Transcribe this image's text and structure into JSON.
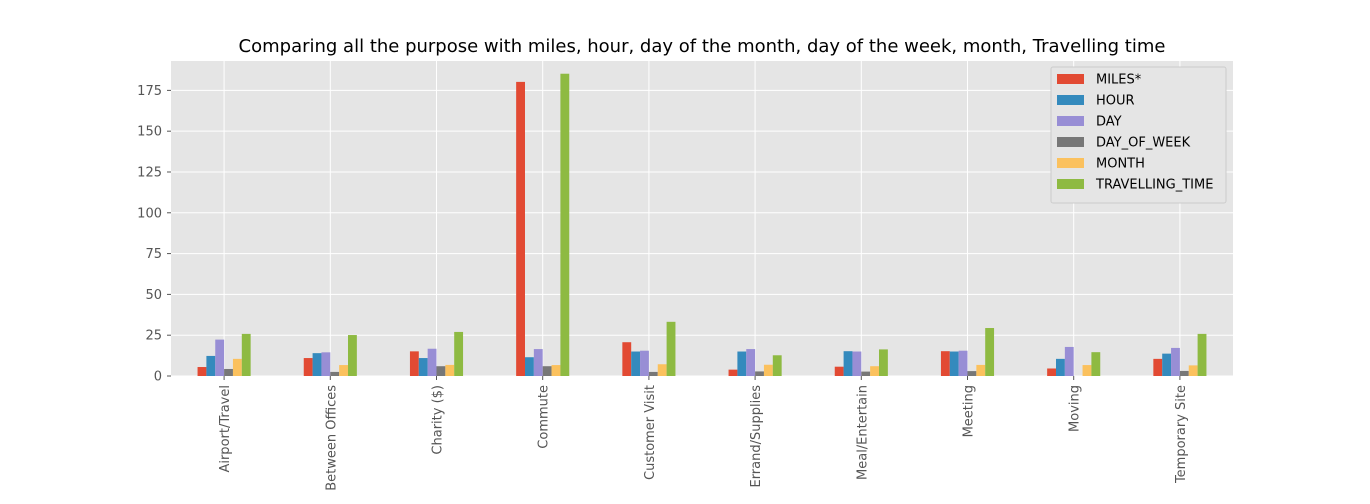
{
  "chart_data": {
    "type": "bar",
    "title": "Comparing all the purpose with miles, hour, day of the month, day of the week, month, Travelling time",
    "xlabel": "",
    "ylabel": "",
    "ylim": [
      0,
      193
    ],
    "yticks": [
      0,
      25,
      50,
      75,
      100,
      125,
      150,
      175
    ],
    "grid": true,
    "legend_position": "top-right",
    "categories": [
      "Airport/Travel",
      "Between Offices",
      "Charity ($)",
      "Commute",
      "Customer Visit",
      "Errand/Supplies",
      "Meal/Entertain",
      "Meeting",
      "Moving",
      "Temporary Site"
    ],
    "series": [
      {
        "name": "MILES*",
        "color": "#E24A33",
        "values": [
          5.5,
          11.0,
          15.1,
          180.2,
          20.7,
          3.9,
          5.7,
          15.2,
          4.6,
          10.5
        ]
      },
      {
        "name": "HOUR",
        "color": "#348ABD",
        "values": [
          12.3,
          14.0,
          11.0,
          11.5,
          15.0,
          15.0,
          15.2,
          15.0,
          10.5,
          13.7
        ]
      },
      {
        "name": "DAY",
        "color": "#988ED5",
        "values": [
          22.3,
          14.5,
          16.7,
          16.5,
          15.5,
          16.5,
          15.0,
          15.5,
          17.8,
          17.2
        ]
      },
      {
        "name": "DAY_OF_WEEK",
        "color": "#777777",
        "values": [
          4.3,
          2.5,
          6.0,
          6.0,
          2.5,
          2.8,
          2.7,
          3.0,
          0.0,
          3.1
        ]
      },
      {
        "name": "MONTH",
        "color": "#FBC15E",
        "values": [
          10.5,
          6.7,
          6.8,
          6.7,
          7.2,
          6.9,
          6.0,
          6.8,
          6.7,
          6.5
        ]
      },
      {
        "name": "TRAVELLING_TIME",
        "color": "#8EBA42",
        "values": [
          25.8,
          25.1,
          27.0,
          185.2,
          33.2,
          12.7,
          16.3,
          29.4,
          14.6,
          25.8
        ]
      }
    ]
  }
}
